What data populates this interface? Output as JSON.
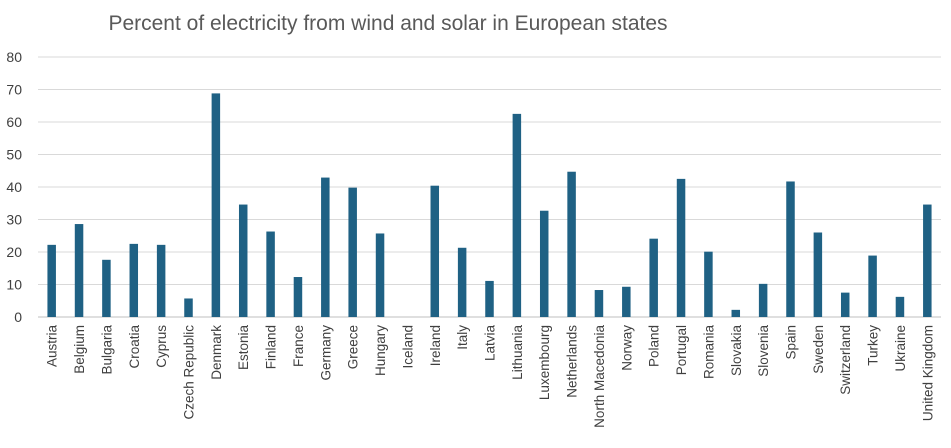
{
  "chart_data": {
    "type": "bar",
    "title": "Percent of electricity from wind and solar in European states",
    "xlabel": "",
    "ylabel": "",
    "ylim": [
      0,
      80
    ],
    "yticks": [
      0,
      10,
      20,
      30,
      40,
      50,
      60,
      70,
      80
    ],
    "grid": true,
    "legend": "none",
    "series": [
      {
        "name": "Percent of electricity from wind and solar",
        "color": "#1f6184"
      }
    ],
    "categories": [
      "Austria",
      "Belgium",
      "Bulgaria",
      "Croatia",
      "Cyprus",
      "Czech Republic",
      "Denmark",
      "Estonia",
      "Finland",
      "France",
      "Germany",
      "Greece",
      "Hungary",
      "Iceland",
      "Ireland",
      "Italy",
      "Latvia",
      "Lithuania",
      "Luxembourg",
      "Netherlands",
      "North Macedonia",
      "Norway",
      "Poland",
      "Portugal",
      "Romania",
      "Slovakia",
      "Slovenia",
      "Spain",
      "Sweden",
      "Switzerland",
      "Turkey",
      "Ukraine",
      "United Kingdom"
    ],
    "values": [
      22.2,
      28.6,
      17.6,
      22.5,
      22.2,
      5.7,
      68.8,
      34.6,
      26.3,
      12.3,
      42.9,
      39.8,
      25.7,
      0,
      40.4,
      21.3,
      11.1,
      62.5,
      32.7,
      44.7,
      8.3,
      9.3,
      24.1,
      42.5,
      20.1,
      2.2,
      10.2,
      41.7,
      26.0,
      7.5,
      18.9,
      6.2,
      34.6
    ]
  }
}
